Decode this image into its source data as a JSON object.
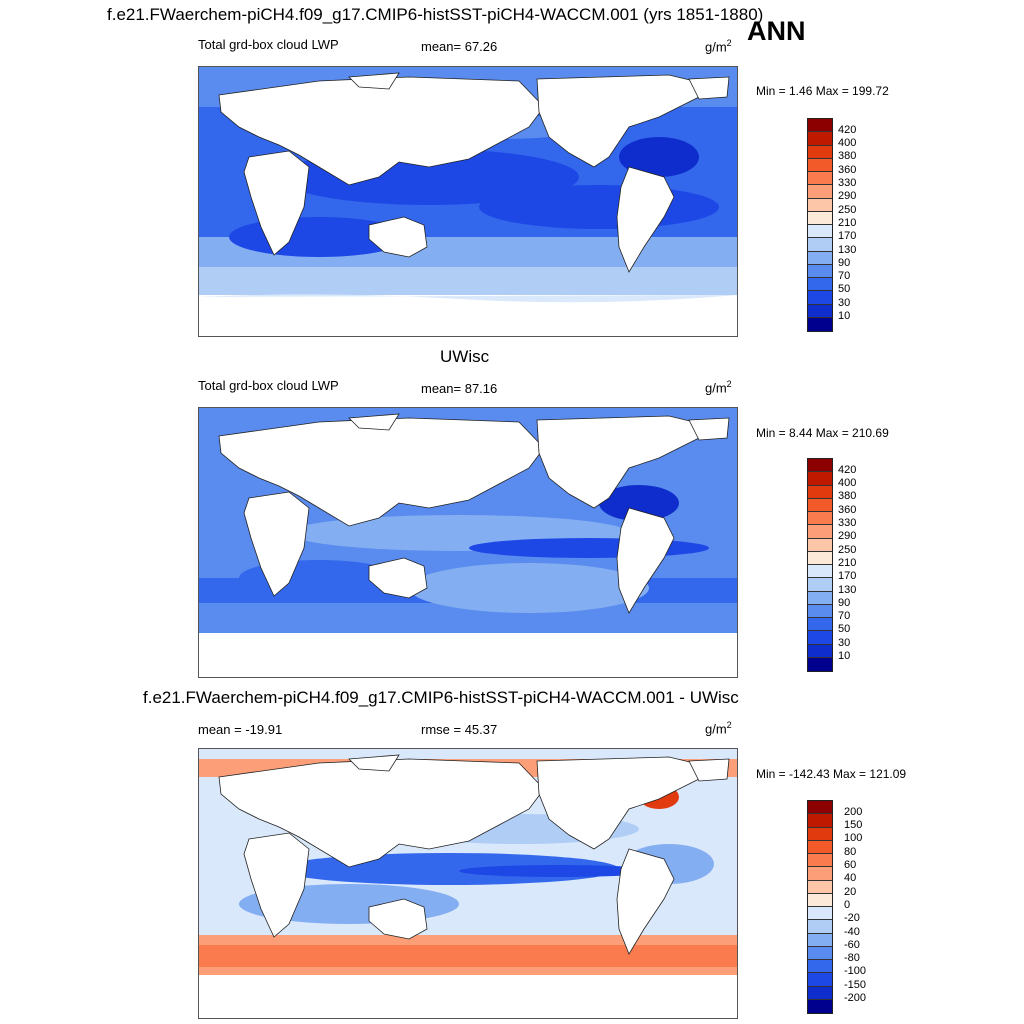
{
  "header": {
    "main_title": "f.e21.FWaerchem-piCH4.f09_g17.CMIP6-histSST-piCH4-WACCM.001 (yrs 1851-1880)",
    "season": "ANN"
  },
  "panels": [
    {
      "id": "model",
      "title": "",
      "left_label": "Total grd-box cloud LWP",
      "mid_label": "mean=  67.26",
      "unit_base": "g/m",
      "unit_exp": "2",
      "minmax": "Min =   1.46 Max = 199.72",
      "colorbar_labels": [
        "420",
        "400",
        "380",
        "360",
        "330",
        "290",
        "250",
        "210",
        "170",
        "130",
        "90",
        "70",
        "50",
        "30",
        "10"
      ],
      "colorbar_colors": [
        "#8c0000",
        "#bf1a00",
        "#e23a0f",
        "#f25a2a",
        "#fa7c4e",
        "#fc9f78",
        "#fdc6a8",
        "#fde9d8",
        "#d9e8fb",
        "#b0cdf6",
        "#84aef2",
        "#5a8bee",
        "#3367ec",
        "#1d48e6",
        "#0f2dcc",
        "#00008f"
      ]
    },
    {
      "id": "obs",
      "title": "UWisc",
      "left_label": "Total grd-box cloud LWP",
      "mid_label": "mean=  87.16",
      "unit_base": "g/m",
      "unit_exp": "2",
      "minmax": "Min =   8.44 Max = 210.69",
      "colorbar_labels": [
        "420",
        "400",
        "380",
        "360",
        "330",
        "290",
        "250",
        "210",
        "170",
        "130",
        "90",
        "70",
        "50",
        "30",
        "10"
      ],
      "colorbar_colors": [
        "#8c0000",
        "#bf1a00",
        "#e23a0f",
        "#f25a2a",
        "#fa7c4e",
        "#fc9f78",
        "#fdc6a8",
        "#fde9d8",
        "#d9e8fb",
        "#b0cdf6",
        "#84aef2",
        "#5a8bee",
        "#3367ec",
        "#1d48e6",
        "#0f2dcc",
        "#00008f"
      ]
    },
    {
      "id": "diff",
      "title": "f.e21.FWaerchem-piCH4.f09_g17.CMIP6-histSST-piCH4-WACCM.001 - UWisc",
      "left_label": "mean = -19.91",
      "mid_label": "rmse =  45.37",
      "unit_base": "g/m",
      "unit_exp": "2",
      "minmax": "Min = -142.43 Max = 121.09",
      "colorbar_labels": [
        "200",
        "150",
        "100",
        "80",
        "60",
        "40",
        "20",
        "0",
        "-20",
        "-40",
        "-60",
        "-80",
        "-100",
        "-150",
        "-200"
      ],
      "colorbar_colors": [
        "#8c0000",
        "#bf1a00",
        "#e23a0f",
        "#f25a2a",
        "#fa7c4e",
        "#fc9f78",
        "#fdc6a8",
        "#fde9d8",
        "#d9e8fb",
        "#b0cdf6",
        "#84aef2",
        "#5a8bee",
        "#3367ec",
        "#1d48e6",
        "#0f2dcc",
        "#00008f"
      ]
    }
  ]
}
